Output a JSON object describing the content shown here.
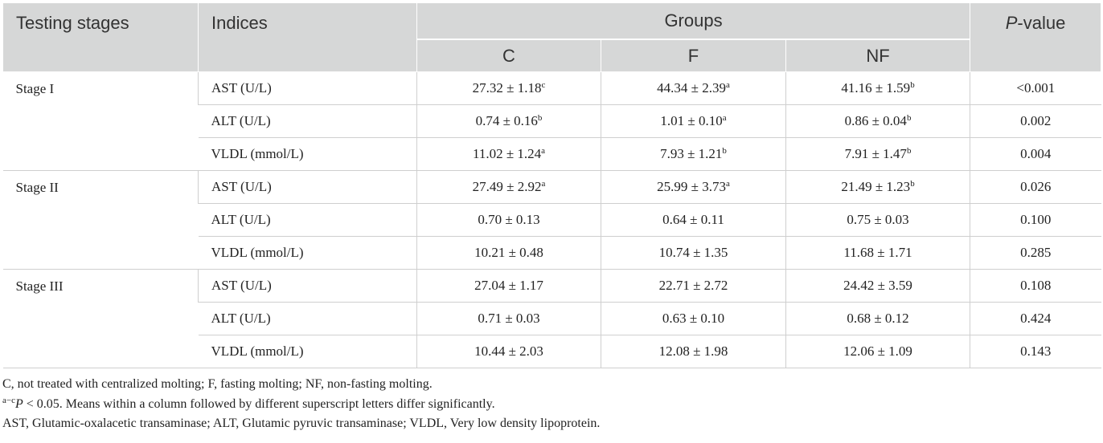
{
  "header": {
    "testing_stages": "Testing stages",
    "indices": "Indices",
    "groups": "Groups",
    "p_value_italic": "P",
    "p_value_rest": "-value",
    "group_c": "C",
    "group_f": "F",
    "group_nf": "NF"
  },
  "stages": [
    {
      "name": "Stage I",
      "rows": [
        {
          "index": "AST (U/L)",
          "c": "27.32 ± 1.18",
          "c_sup": "c",
          "f": "44.34 ± 2.39",
          "f_sup": "a",
          "nf": "41.16 ± 1.59",
          "nf_sup": "b",
          "p": "<0.001"
        },
        {
          "index": "ALT (U/L)",
          "c": "0.74 ± 0.16",
          "c_sup": "b",
          "f": "1.01 ± 0.10",
          "f_sup": "a",
          "nf": "0.86 ± 0.04",
          "nf_sup": "b",
          "p": "0.002"
        },
        {
          "index": "VLDL (mmol/L)",
          "c": "11.02 ± 1.24",
          "c_sup": "a",
          "f": "7.93 ± 1.21",
          "f_sup": "b",
          "nf": "7.91 ± 1.47",
          "nf_sup": "b",
          "p": "0.004"
        }
      ]
    },
    {
      "name": "Stage II",
      "rows": [
        {
          "index": "AST (U/L)",
          "c": "27.49 ± 2.92",
          "c_sup": "a",
          "f": "25.99 ± 3.73",
          "f_sup": "a",
          "nf": "21.49 ± 1.23",
          "nf_sup": "b",
          "p": "0.026"
        },
        {
          "index": "ALT (U/L)",
          "c": "0.70 ± 0.13",
          "c_sup": "",
          "f": "0.64 ± 0.11",
          "f_sup": "",
          "nf": "0.75 ± 0.03",
          "nf_sup": "",
          "p": "0.100"
        },
        {
          "index": "VLDL (mmol/L)",
          "c": "10.21 ± 0.48",
          "c_sup": "",
          "f": "10.74 ± 1.35",
          "f_sup": "",
          "nf": "11.68 ± 1.71",
          "nf_sup": "",
          "p": "0.285"
        }
      ]
    },
    {
      "name": "Stage III",
      "rows": [
        {
          "index": "AST (U/L)",
          "c": "27.04 ± 1.17",
          "c_sup": "",
          "f": "22.71 ± 2.72",
          "f_sup": "",
          "nf": "24.42 ± 3.59",
          "nf_sup": "",
          "p": "0.108"
        },
        {
          "index": "ALT (U/L)",
          "c": "0.71 ± 0.03",
          "c_sup": "",
          "f": "0.63 ± 0.10",
          "f_sup": "",
          "nf": "0.68 ± 0.12",
          "nf_sup": "",
          "p": "0.424"
        },
        {
          "index": "VLDL (mmol/L)",
          "c": "10.44 ± 2.03",
          "c_sup": "",
          "f": "12.08 ± 1.98",
          "f_sup": "",
          "nf": "12.06 ± 1.09",
          "nf_sup": "",
          "p": "0.143"
        }
      ]
    }
  ],
  "notes": {
    "line1": "C, not treated with centralized molting; F, fasting molting; NF, non-fasting molting.",
    "line2_sup": "a−c",
    "line2_p": "P",
    "line2_rest": " < 0.05. Means within a column followed by different superscript letters differ significantly.",
    "line3": "AST, Glutamic-oxalacetic transaminase; ALT, Glutamic pyruvic transaminase; VLDL, Very low density lipoprotein."
  }
}
